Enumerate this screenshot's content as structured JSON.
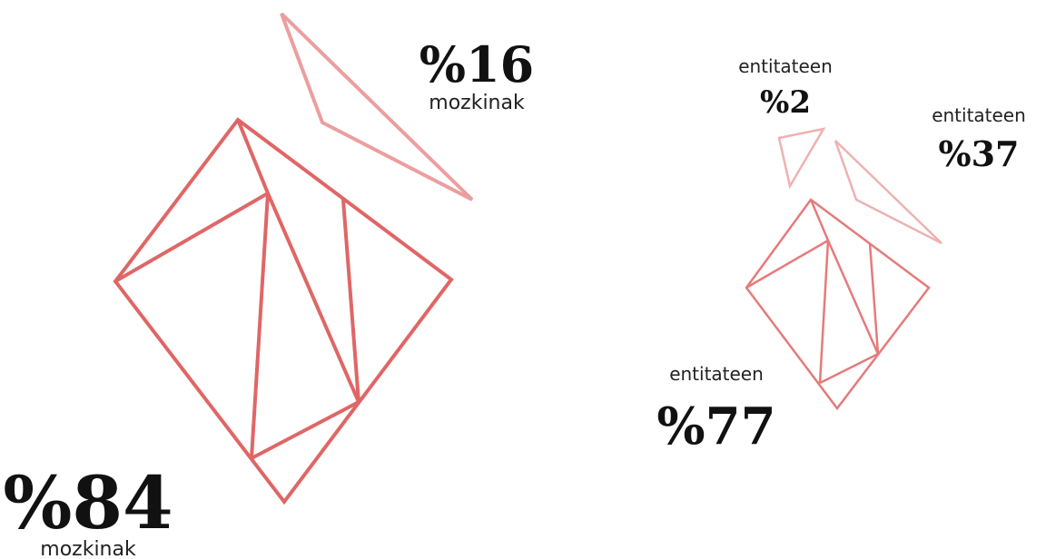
{
  "left": {
    "main": {
      "value": "%84",
      "label": "mozkinak"
    },
    "shard": {
      "value": "%16",
      "label": "mozkinak"
    }
  },
  "right": {
    "main": {
      "label": "entitateen",
      "value": "%77"
    },
    "shard_a": {
      "label": "entitateen",
      "value": "%2"
    },
    "shard_b": {
      "label": "entitateen",
      "value": "%37"
    }
  }
}
